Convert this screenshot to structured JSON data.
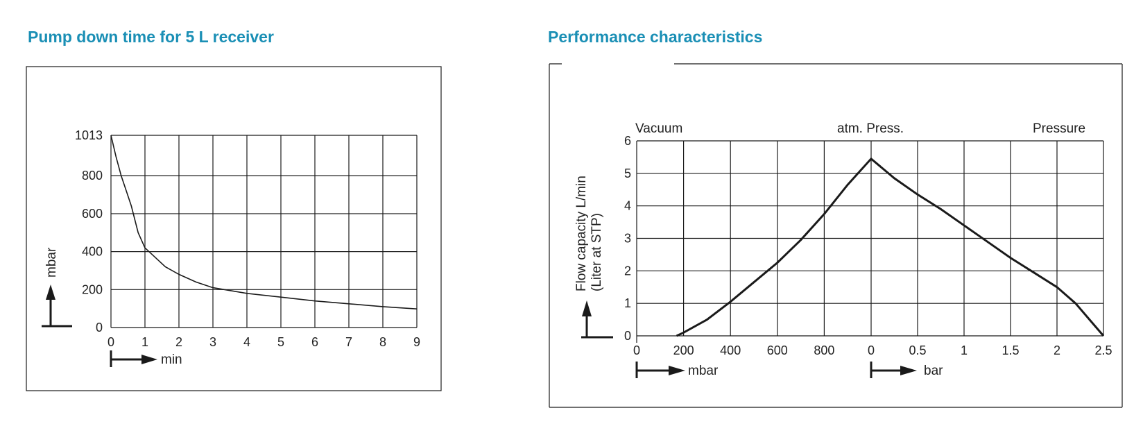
{
  "chart_data": [
    {
      "type": "line",
      "title": "Pump down time for 5 L receiver",
      "xlabel": "min",
      "ylabel": "mbar",
      "xlim": [
        0,
        9
      ],
      "ylim": [
        0,
        1013
      ],
      "x_ticks": [
        "0",
        "1",
        "2",
        "3",
        "4",
        "5",
        "6",
        "7",
        "8",
        "9"
      ],
      "y_ticks": [
        "0",
        "200",
        "400",
        "600",
        "800",
        "1013"
      ],
      "y_tick_values": [
        0,
        200,
        400,
        600,
        800,
        1013
      ],
      "grid": true,
      "series": [
        {
          "x": [
            0,
            0.15,
            0.3,
            0.45,
            0.6,
            0.8,
            1.0,
            1.3,
            1.6,
            2.0,
            2.5,
            3.0,
            3.5,
            4.0,
            5.0,
            6.0,
            7.0,
            8.0,
            9.0
          ],
          "y": [
            1013,
            900,
            800,
            720,
            640,
            500,
            420,
            370,
            320,
            280,
            240,
            210,
            195,
            180,
            160,
            140,
            125,
            110,
            98
          ]
        }
      ]
    },
    {
      "type": "line",
      "title": "Performance characteristics",
      "ylabel": "Flow capacity L/min",
      "ylabel2": "(Liter at STP)",
      "band_labels": [
        "Vacuum",
        "atm. Press.",
        "Pressure"
      ],
      "x_units": [
        "mbar",
        "bar"
      ],
      "vacuum_ticks": [
        "0",
        "200",
        "400",
        "600",
        "800"
      ],
      "pressure_ticks": [
        "0",
        "0.5",
        "1",
        "1.5",
        "2",
        "2.5"
      ],
      "y_ticks": [
        "0",
        "1",
        "2",
        "3",
        "4",
        "5",
        "6"
      ],
      "ylim": [
        0,
        6
      ],
      "grid": true,
      "series": [
        {
          "vacuum": {
            "x": [
              170,
              200,
              300,
              400,
              500,
              600,
              700,
              800,
              900,
              1000
            ],
            "y": [
              0,
              0.1,
              0.5,
              1.05,
              1.65,
              2.25,
              2.95,
              3.75,
              4.65,
              5.45
            ]
          },
          "pressure": {
            "x": [
              0,
              0.25,
              0.5,
              0.75,
              1.0,
              1.25,
              1.5,
              1.75,
              2.0,
              2.2,
              2.35,
              2.5
            ],
            "y": [
              5.45,
              4.85,
              4.35,
              3.9,
              3.4,
              2.9,
              2.4,
              1.95,
              1.5,
              1.0,
              0.5,
              0
            ]
          }
        }
      ]
    }
  ]
}
